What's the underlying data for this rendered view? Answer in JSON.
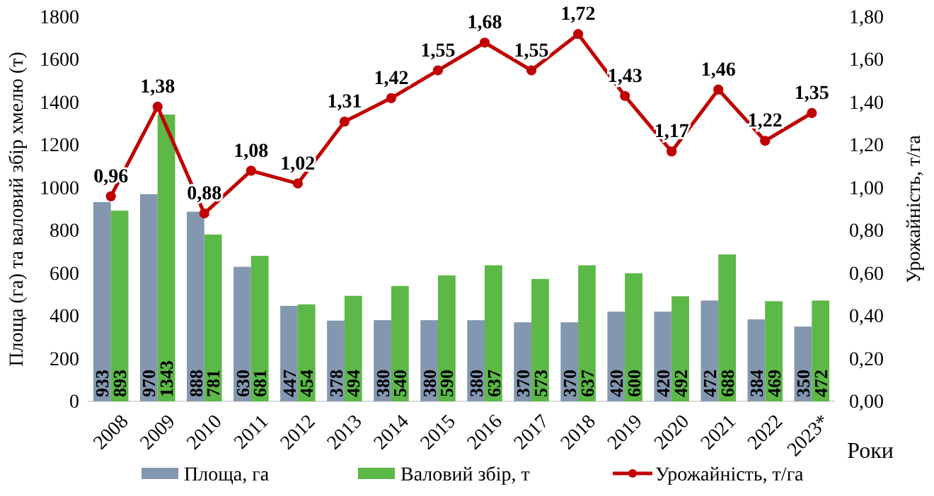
{
  "chart_data": {
    "type": "bar",
    "categories": [
      "2008",
      "2009",
      "2010",
      "2011",
      "2012",
      "2013",
      "2014",
      "2015",
      "2016",
      "2017",
      "2018",
      "2019",
      "2020",
      "2021",
      "2022",
      "2023*"
    ],
    "xlabel": "Роки",
    "ylabel": "Площа (га) та валовий збір хмелю (т)",
    "y2label": "Урожайність, т/га",
    "ylim": [
      0,
      1800
    ],
    "yticks": [
      0,
      200,
      400,
      600,
      800,
      1000,
      1200,
      1400,
      1600,
      1800
    ],
    "y2lim": [
      0,
      1.8
    ],
    "y2ticks": [
      {
        "value": 0,
        "label": "0,00"
      },
      {
        "value": 0.2,
        "label": "0,20"
      },
      {
        "value": 0.4,
        "label": "0,40"
      },
      {
        "value": 0.6,
        "label": "0,60"
      },
      {
        "value": 0.8,
        "label": "0,80"
      },
      {
        "value": 1.0,
        "label": "1,00"
      },
      {
        "value": 1.2,
        "label": "1,20"
      },
      {
        "value": 1.4,
        "label": "1,40"
      },
      {
        "value": 1.6,
        "label": "1,60"
      },
      {
        "value": 1.8,
        "label": "1,80"
      }
    ],
    "legend": "bottom",
    "marker": "circle",
    "series": [
      {
        "name": "Площа, га",
        "color": "#8497b0",
        "values": [
          933,
          970,
          888,
          630,
          447,
          378,
          380,
          380,
          380,
          370,
          370,
          420,
          420,
          472,
          384,
          350
        ],
        "value_labels": [
          "933",
          "970",
          "888",
          "630",
          "447",
          "378",
          "380",
          "380",
          "380",
          "370",
          "370",
          "420",
          "420",
          "472",
          "384",
          "350"
        ]
      },
      {
        "name": "Валовий збір, т",
        "color": "#5cb847",
        "values": [
          893,
          1343,
          781,
          681,
          454,
          494,
          540,
          590,
          637,
          573,
          637,
          600,
          492,
          688,
          469,
          472
        ],
        "value_labels": [
          "893",
          "1343",
          "781",
          "681",
          "454",
          "494",
          "540",
          "590",
          "637",
          "573",
          "637",
          "600",
          "492",
          "688",
          "469",
          "472"
        ]
      },
      {
        "name": "Урожайність, т/га",
        "type": "line",
        "axis": "y2",
        "color": "#c00000",
        "values": [
          0.96,
          1.38,
          0.88,
          1.08,
          1.02,
          1.31,
          1.42,
          1.55,
          1.68,
          1.55,
          1.72,
          1.43,
          1.17,
          1.46,
          1.22,
          1.35
        ],
        "value_labels": [
          "0,96",
          "1,38",
          "0,88",
          "1,08",
          "1,02",
          "1,31",
          "1,42",
          "1,55",
          "1,68",
          "1,55",
          "1,72",
          "1,43",
          "1,17",
          "1,46",
          "1,22",
          "1,35"
        ]
      }
    ]
  }
}
